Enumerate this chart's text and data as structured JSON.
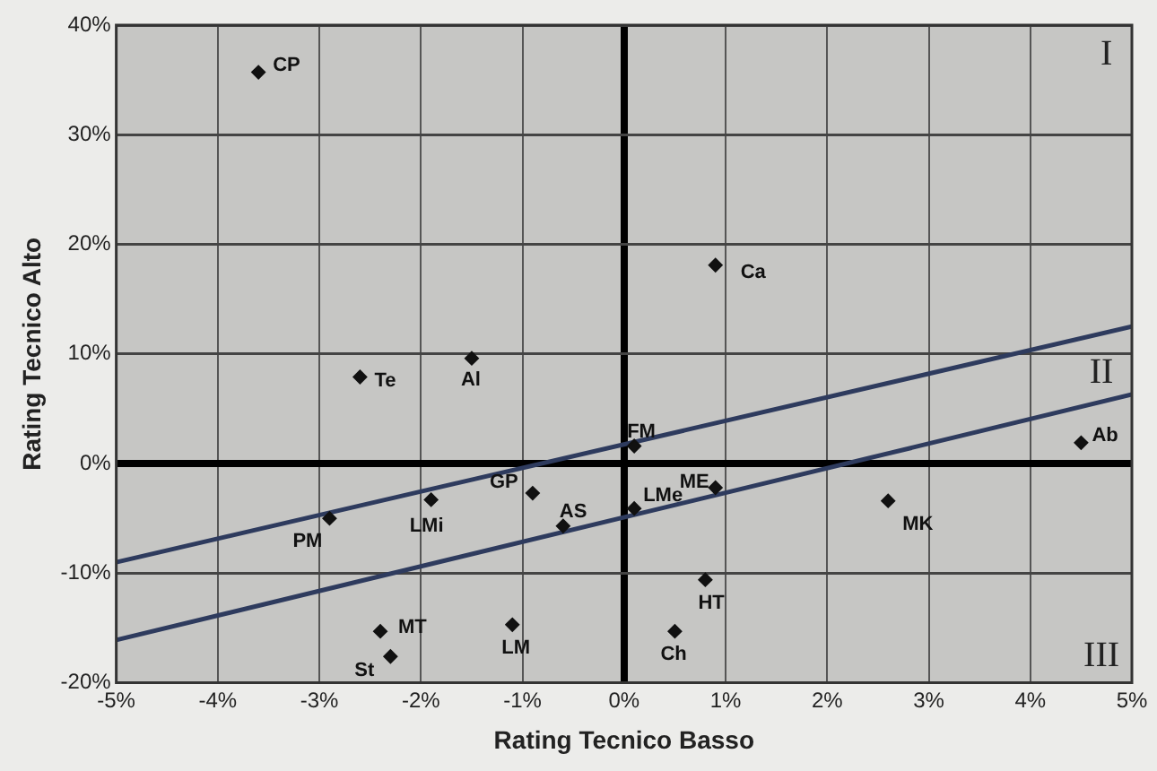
{
  "chart_data": {
    "type": "scatter",
    "xlabel": "Rating Tecnico Basso",
    "ylabel": "Rating Tecnico Alto",
    "xlim": [
      -5,
      5
    ],
    "ylim": [
      -20,
      40
    ],
    "xticks": [
      {
        "value": -5,
        "label": "-5%"
      },
      {
        "value": -4,
        "label": "-4%"
      },
      {
        "value": -3,
        "label": "-3%"
      },
      {
        "value": -2,
        "label": "-2%"
      },
      {
        "value": -1,
        "label": "-1%"
      },
      {
        "value": 0,
        "label": "0%"
      },
      {
        "value": 1,
        "label": "1%"
      },
      {
        "value": 2,
        "label": "2%"
      },
      {
        "value": 3,
        "label": "3%"
      },
      {
        "value": 4,
        "label": "4%"
      },
      {
        "value": 5,
        "label": "5%"
      }
    ],
    "yticks": [
      {
        "value": -20,
        "label": "-20%"
      },
      {
        "value": -10,
        "label": "-10%"
      },
      {
        "value": 0,
        "label": "0%"
      },
      {
        "value": 10,
        "label": "10%"
      },
      {
        "value": 20,
        "label": "20%"
      },
      {
        "value": 30,
        "label": "30%"
      },
      {
        "value": 40,
        "label": "40%"
      }
    ],
    "grid": true,
    "legend": false,
    "series": [
      {
        "marker": "diamond",
        "color": "#111111",
        "x": [
          -3.6,
          0.9,
          -2.6,
          -1.5,
          -2.9,
          -1.9,
          -0.9,
          -0.6,
          -2.4,
          -2.3,
          -1.1,
          0.1,
          0.9,
          0.1,
          0.8,
          0.5,
          2.6,
          4.5
        ],
        "values": [
          35.7,
          18.1,
          7.9,
          9.6,
          -5.0,
          -3.3,
          -2.7,
          -5.7,
          -15.3,
          -17.6,
          -14.7,
          -4.1,
          -2.2,
          1.6,
          -10.6,
          -15.3,
          -3.4,
          1.9
        ],
        "value_labels": [
          "CP",
          "Ca",
          "Te",
          "Al",
          "PM",
          "LMi",
          "GP",
          "AS",
          "MT",
          "St",
          "LM",
          "LMe",
          "ME",
          "FM",
          "HT",
          "Ch",
          "MK",
          "Ab"
        ]
      },
      {
        "type": "line",
        "color": "#2e3b5e",
        "x": [
          -5,
          5
        ],
        "values": [
          -9.0,
          12.5
        ]
      },
      {
        "type": "line",
        "color": "#2e3b5e",
        "x": [
          -5,
          5
        ],
        "values": [
          -16.1,
          6.3
        ]
      }
    ],
    "annotations": [
      "I",
      "II",
      "III"
    ]
  }
}
